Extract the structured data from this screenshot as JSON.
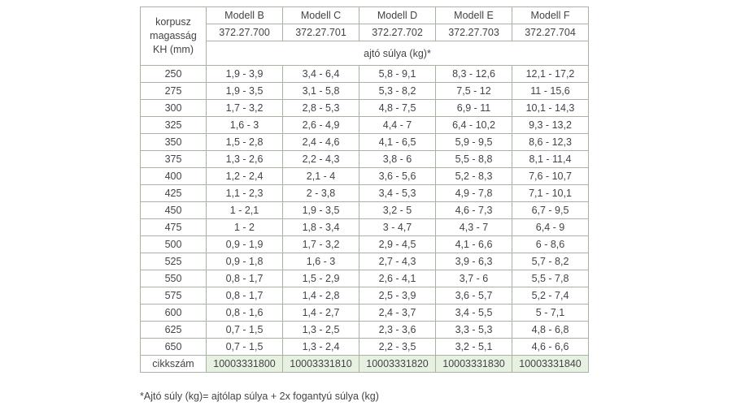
{
  "table": {
    "kh_header": [
      "korpusz",
      "magasság",
      "KH (mm)"
    ],
    "models": [
      {
        "name": "Modell B",
        "code": "372.27.700"
      },
      {
        "name": "Modell C",
        "code": "372.27.701"
      },
      {
        "name": "Modell D",
        "code": "372.27.702"
      },
      {
        "name": "Modell E",
        "code": "372.27.703"
      },
      {
        "name": "Modell F",
        "code": "372.27.704"
      }
    ],
    "subheader": "ajtó súlya (kg)*",
    "rows": [
      [
        "250",
        "1,9 - 3,9",
        "3,4 - 6,4",
        "5,8 - 9,1",
        "8,3 - 12,6",
        "12,1 - 17,2"
      ],
      [
        "275",
        "1,9 - 3,5",
        "3,1 - 5,8",
        "5,3 - 8,2",
        "7,5 - 12",
        "11 - 15,6"
      ],
      [
        "300",
        "1,7 - 3,2",
        "2,8 - 5,3",
        "4,8 - 7,5",
        "6,9 - 11",
        "10,1 - 14,3"
      ],
      [
        "325",
        "1,6 - 3",
        "2,6 - 4,9",
        "4,4 - 7",
        "6,4 - 10,2",
        "9,3 - 13,2"
      ],
      [
        "350",
        "1,5 - 2,8",
        "2,4 - 4,6",
        "4,1 - 6,5",
        "5,9 - 9,5",
        "8,6 - 12,3"
      ],
      [
        "375",
        "1,3 - 2,6",
        "2,2 - 4,3",
        "3,8 - 6",
        "5,5 - 8,8",
        "8,1 - 11,4"
      ],
      [
        "400",
        "1,2 - 2,4",
        "2,1 - 4",
        "3,6 - 5,6",
        "5,2 - 8,3",
        "7,6 - 10,7"
      ],
      [
        "425",
        "1,1 - 2,3",
        "2 - 3,8",
        "3,4 - 5,3",
        "4,9 - 7,8",
        "7,1 - 10,1"
      ],
      [
        "450",
        "1 - 2,1",
        "1,9 - 3,5",
        "3,2 - 5",
        "4,6 - 7,3",
        "6,7 - 9,5"
      ],
      [
        "475",
        "1 - 2",
        "1,8 - 3,4",
        "3 - 4,7",
        "4,3 - 7",
        "6,4 - 9"
      ],
      [
        "500",
        "0,9 - 1,9",
        "1,7 - 3,2",
        "2,9 - 4,5",
        "4,1 - 6,6",
        "6 - 8,6"
      ],
      [
        "525",
        "0,9 - 1,8",
        "1,6 - 3",
        "2,7 - 4,3",
        "3,9 - 6,3",
        "5,7 - 8,2"
      ],
      [
        "550",
        "0,8 - 1,7",
        "1,5 - 2,9",
        "2,6 - 4,1",
        "3,7 - 6",
        "5,5 - 7,8"
      ],
      [
        "575",
        "0,8 - 1,7",
        "1,4 - 2,8",
        "2,5 - 3,9",
        "3,6 - 5,7",
        "5,2 - 7,4"
      ],
      [
        "600",
        "0,8 - 1,6",
        "1,4 - 2,7",
        "2,4 - 3,7",
        "3,4 - 5,5",
        "5 - 7,1"
      ],
      [
        "625",
        "0,7 - 1,5",
        "1,3 - 2,5",
        "2,3 - 3,6",
        "3,3 - 5,3",
        "4,8 - 6,8"
      ],
      [
        "650",
        "0,7 - 1,5",
        "1,3 - 2,4",
        "2,2 - 3,5",
        "3,2 - 5,1",
        "4,6 - 6,6"
      ]
    ],
    "article_label": "cikkszám",
    "article_numbers": [
      "10003331800",
      "10003331810",
      "10003331820",
      "10003331830",
      "10003331840"
    ]
  },
  "footnote": "*Ajtó súly (kg)= ajtólap súlya + 2x fogantyú súlya (kg)"
}
